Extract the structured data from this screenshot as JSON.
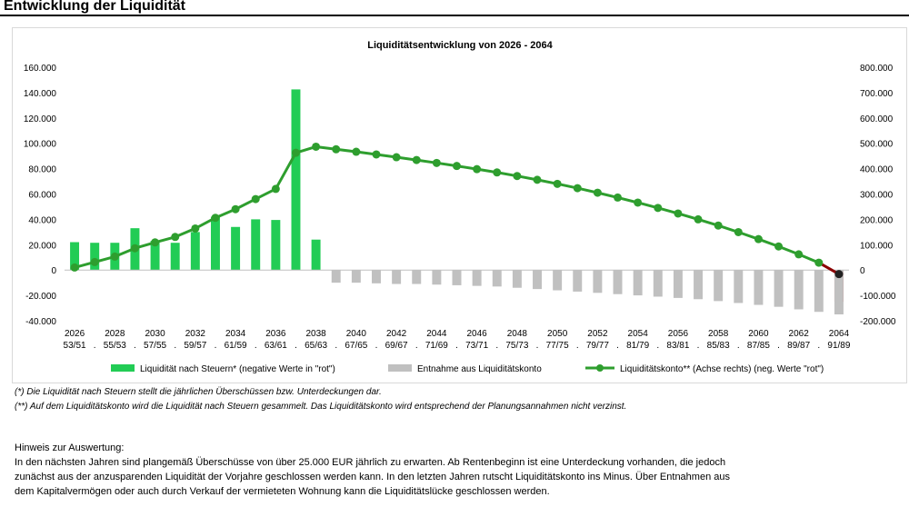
{
  "page": {
    "title": "Entwicklung der Liquidität"
  },
  "footnotes": {
    "note1": "(*)   Die Liquidität nach Steuern stellt die jährlichen Überschüssen bzw. Unterdeckungen dar.",
    "note2": "(**)  Auf dem Liquiditätskonto wird die Liquidität nach Steuern gesammelt. Das Liquiditätskonto wird entsprechend der Planungsannahmen nicht verzinst."
  },
  "hint": {
    "heading": "Hinweis zur Auswertung:",
    "lines": [
      "In den nächsten Jahren sind plangemäß Überschüsse von über 25.000 EUR jährlich zu erwarten. Ab Rentenbeginn ist eine Unterdeckung vorhanden, die jedoch",
      "zunächst aus der anzusparenden Liquidität der Vorjahre geschlossen werden kann. In den letzten Jahren rutscht Liquiditätskonto ins Minus. Über Entnahmen aus",
      "dem Kapitalvermögen oder auch durch Verkauf der vermieteten Wohnung kann die Liquiditätslücke geschlossen werden."
    ]
  },
  "chart_data": {
    "type": "bar",
    "title": "Liquiditätsentwicklung von 2026 - 2064",
    "categories": [
      "2026",
      "2027",
      "2028",
      "2029",
      "2030",
      "2031",
      "2032",
      "2033",
      "2034",
      "2035",
      "2036",
      "2037",
      "2038",
      "2039",
      "2040",
      "2041",
      "2042",
      "2043",
      "2044",
      "2045",
      "2046",
      "2047",
      "2048",
      "2049",
      "2050",
      "2051",
      "2052",
      "2053",
      "2054",
      "2055",
      "2056",
      "2057",
      "2058",
      "2059",
      "2060",
      "2061",
      "2062",
      "2063",
      "2064"
    ],
    "x_tick_labels": [
      {
        "year": "2026",
        "ages": "53/51"
      },
      {
        "year": "",
        "ages": "."
      },
      {
        "year": "2028",
        "ages": "55/53"
      },
      {
        "year": "",
        "ages": "."
      },
      {
        "year": "2030",
        "ages": "57/55"
      },
      {
        "year": "",
        "ages": "."
      },
      {
        "year": "2032",
        "ages": "59/57"
      },
      {
        "year": "",
        "ages": "."
      },
      {
        "year": "2034",
        "ages": "61/59"
      },
      {
        "year": "",
        "ages": "."
      },
      {
        "year": "2036",
        "ages": "63/61"
      },
      {
        "year": "",
        "ages": "."
      },
      {
        "year": "2038",
        "ages": "65/63"
      },
      {
        "year": "",
        "ages": "."
      },
      {
        "year": "2040",
        "ages": "67/65"
      },
      {
        "year": "",
        "ages": "."
      },
      {
        "year": "2042",
        "ages": "69/67"
      },
      {
        "year": "",
        "ages": "."
      },
      {
        "year": "2044",
        "ages": "71/69"
      },
      {
        "year": "",
        "ages": "."
      },
      {
        "year": "2046",
        "ages": "73/71"
      },
      {
        "year": "",
        "ages": "."
      },
      {
        "year": "2048",
        "ages": "75/73"
      },
      {
        "year": "",
        "ages": "."
      },
      {
        "year": "2050",
        "ages": "77/75"
      },
      {
        "year": "",
        "ages": "."
      },
      {
        "year": "2052",
        "ages": "79/77"
      },
      {
        "year": "",
        "ages": "."
      },
      {
        "year": "2054",
        "ages": "81/79"
      },
      {
        "year": "",
        "ages": "."
      },
      {
        "year": "2056",
        "ages": "83/81"
      },
      {
        "year": "",
        "ages": "."
      },
      {
        "year": "2058",
        "ages": "85/83"
      },
      {
        "year": "",
        "ages": "."
      },
      {
        "year": "2060",
        "ages": "87/85"
      },
      {
        "year": "",
        "ages": "."
      },
      {
        "year": "2062",
        "ages": "89/87"
      },
      {
        "year": "",
        "ages": "."
      },
      {
        "year": "2064",
        "ages": "91/89"
      }
    ],
    "ylim_left": [
      -40000,
      160000
    ],
    "ylim_right": [
      -200000,
      800000
    ],
    "yticks_left": [
      "-40.000",
      "-20.000",
      "0",
      "20.000",
      "40.000",
      "60.000",
      "80.000",
      "100.000",
      "120.000",
      "140.000",
      "160.000"
    ],
    "yticks_right": [
      "-200.000",
      "-100.000",
      "0",
      "100.000",
      "200.000",
      "300.000",
      "400.000",
      "500.000",
      "600.000",
      "700.000",
      "800.000"
    ],
    "grid": false,
    "legend_position": "bottom",
    "series": [
      {
        "name": "Liquidität nach Steuern* (negative Werte in \"rot\")",
        "kind": "bar",
        "axis": "left",
        "color": "#22cc55",
        "negative_color": "#ee2222",
        "values": [
          22000,
          21500,
          21500,
          33000,
          23000,
          21500,
          30000,
          42000,
          34000,
          40000,
          39500,
          142500,
          24000,
          0,
          0,
          0,
          0,
          0,
          0,
          0,
          0,
          0,
          0,
          0,
          0,
          0,
          0,
          0,
          0,
          0,
          0,
          0,
          0,
          0,
          0,
          0,
          0,
          0,
          -25000
        ]
      },
      {
        "name": "Entnahme aus Liquiditätskonto",
        "kind": "bar",
        "axis": "left",
        "color": "#c0c0c0",
        "values": [
          0,
          0,
          0,
          0,
          0,
          0,
          0,
          0,
          0,
          0,
          0,
          0,
          0,
          -10000,
          -10000,
          -10500,
          -11000,
          -11000,
          -11500,
          -12000,
          -12500,
          -13000,
          -14000,
          -15000,
          -16000,
          -17000,
          -18000,
          -19000,
          -20000,
          -21000,
          -22000,
          -23000,
          -24500,
          -26000,
          -27500,
          -29000,
          -31000,
          -33000,
          -35000
        ]
      },
      {
        "name": "Liquiditätskonto** (Achse rechts) (neg. Werte \"rot\")",
        "kind": "line",
        "axis": "right",
        "color": "#2e9e2e",
        "negative_color": "#8b0000",
        "values": [
          10000,
          31500,
          53000,
          86000,
          109000,
          130500,
          164000,
          206000,
          240000,
          280000,
          320000,
          462500,
          486500,
          476500,
          466500,
          456000,
          445000,
          434000,
          422500,
          410500,
          398000,
          385000,
          371000,
          356000,
          340000,
          323000,
          305000,
          286000,
          266000,
          245000,
          223000,
          200000,
          175500,
          149500,
          122000,
          93000,
          62000,
          29000,
          -16000
        ]
      }
    ]
  }
}
